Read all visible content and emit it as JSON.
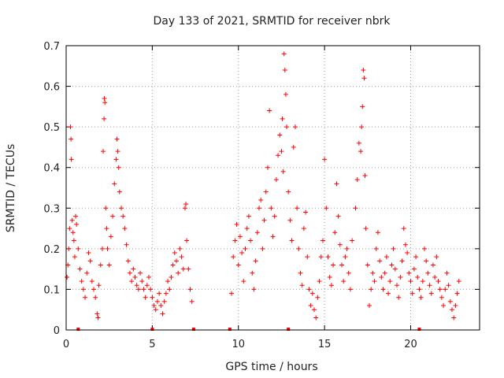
{
  "chart_data": {
    "type": "scatter",
    "title": "Day 133 of 2021, SRMTID for receiver nbrk",
    "xlabel": "GPS time / hours",
    "ylabel": "SRMTID / TECUs",
    "xlim": [
      0,
      24
    ],
    "ylim": [
      0,
      0.7
    ],
    "xticks": [
      0,
      5,
      10,
      15,
      20
    ],
    "xtick_labels": [
      "0",
      "5",
      "10",
      "15",
      "20"
    ],
    "yticks": [
      0,
      0.1,
      0.2,
      0.3,
      0.4,
      0.5,
      0.6,
      0.7
    ],
    "ytick_labels": [
      "0",
      "0.1",
      "0.2",
      "0.3",
      "0.4",
      "0.5",
      "0.6",
      "0.7"
    ],
    "grid": true,
    "marker": "+",
    "color": "#ff0000",
    "gap_markers_x": [
      0.7,
      5.0,
      7.4,
      9.5,
      12.9,
      20.5
    ],
    "series": [
      {
        "name": "nbrk",
        "points": [
          [
            0.05,
            0.13
          ],
          [
            0.1,
            0.16
          ],
          [
            0.15,
            0.2
          ],
          [
            0.2,
            0.25
          ],
          [
            0.25,
            0.5
          ],
          [
            0.28,
            0.47
          ],
          [
            0.3,
            0.42
          ],
          [
            0.35,
            0.27
          ],
          [
            0.4,
            0.24
          ],
          [
            0.45,
            0.22
          ],
          [
            0.5,
            0.18
          ],
          [
            0.55,
            0.28
          ],
          [
            0.6,
            0.26
          ],
          [
            0.7,
            0.2
          ],
          [
            0.8,
            0.15
          ],
          [
            0.9,
            0.12
          ],
          [
            1.0,
            0.1
          ],
          [
            1.1,
            0.08
          ],
          [
            1.2,
            0.14
          ],
          [
            1.3,
            0.19
          ],
          [
            1.4,
            0.17
          ],
          [
            1.5,
            0.12
          ],
          [
            1.6,
            0.1
          ],
          [
            1.7,
            0.08
          ],
          [
            1.8,
            0.04
          ],
          [
            1.85,
            0.03
          ],
          [
            1.9,
            0.11
          ],
          [
            2.0,
            0.16
          ],
          [
            2.1,
            0.2
          ],
          [
            2.15,
            0.44
          ],
          [
            2.2,
            0.52
          ],
          [
            2.22,
            0.57
          ],
          [
            2.25,
            0.56
          ],
          [
            2.3,
            0.3
          ],
          [
            2.35,
            0.25
          ],
          [
            2.4,
            0.2
          ],
          [
            2.5,
            0.16
          ],
          [
            2.6,
            0.23
          ],
          [
            2.7,
            0.28
          ],
          [
            2.8,
            0.36
          ],
          [
            2.9,
            0.42
          ],
          [
            2.95,
            0.47
          ],
          [
            3.0,
            0.44
          ],
          [
            3.05,
            0.4
          ],
          [
            3.1,
            0.34
          ],
          [
            3.2,
            0.3
          ],
          [
            3.3,
            0.28
          ],
          [
            3.4,
            0.25
          ],
          [
            3.5,
            0.21
          ],
          [
            3.6,
            0.17
          ],
          [
            3.7,
            0.14
          ],
          [
            3.8,
            0.12
          ],
          [
            3.9,
            0.15
          ],
          [
            4.0,
            0.13
          ],
          [
            4.1,
            0.11
          ],
          [
            4.2,
            0.1
          ],
          [
            4.3,
            0.14
          ],
          [
            4.4,
            0.12
          ],
          [
            4.5,
            0.1
          ],
          [
            4.6,
            0.08
          ],
          [
            4.7,
            0.11
          ],
          [
            4.8,
            0.13
          ],
          [
            4.9,
            0.1
          ],
          [
            5.0,
            0.08
          ],
          [
            5.1,
            0.06
          ],
          [
            5.2,
            0.05
          ],
          [
            5.3,
            0.07
          ],
          [
            5.4,
            0.09
          ],
          [
            5.5,
            0.06
          ],
          [
            5.6,
            0.04
          ],
          [
            5.7,
            0.07
          ],
          [
            5.8,
            0.09
          ],
          [
            5.9,
            0.12
          ],
          [
            6.0,
            0.1
          ],
          [
            6.1,
            0.13
          ],
          [
            6.2,
            0.16
          ],
          [
            6.3,
            0.19
          ],
          [
            6.4,
            0.17
          ],
          [
            6.5,
            0.14
          ],
          [
            6.6,
            0.2
          ],
          [
            6.7,
            0.18
          ],
          [
            6.8,
            0.15
          ],
          [
            6.9,
            0.3
          ],
          [
            6.95,
            0.31
          ],
          [
            7.0,
            0.22
          ],
          [
            7.1,
            0.15
          ],
          [
            7.2,
            0.1
          ],
          [
            7.3,
            0.07
          ],
          [
            9.6,
            0.09
          ],
          [
            9.7,
            0.18
          ],
          [
            9.8,
            0.22
          ],
          [
            9.9,
            0.26
          ],
          [
            10.0,
            0.16
          ],
          [
            10.1,
            0.23
          ],
          [
            10.2,
            0.19
          ],
          [
            10.3,
            0.12
          ],
          [
            10.4,
            0.2
          ],
          [
            10.5,
            0.25
          ],
          [
            10.6,
            0.28
          ],
          [
            10.7,
            0.22
          ],
          [
            10.8,
            0.14
          ],
          [
            10.9,
            0.1
          ],
          [
            11.0,
            0.17
          ],
          [
            11.1,
            0.24
          ],
          [
            11.2,
            0.3
          ],
          [
            11.3,
            0.32
          ],
          [
            11.4,
            0.2
          ],
          [
            11.5,
            0.27
          ],
          [
            11.6,
            0.34
          ],
          [
            11.7,
            0.4
          ],
          [
            11.8,
            0.54
          ],
          [
            11.9,
            0.3
          ],
          [
            12.0,
            0.23
          ],
          [
            12.1,
            0.28
          ],
          [
            12.2,
            0.37
          ],
          [
            12.3,
            0.43
          ],
          [
            12.4,
            0.48
          ],
          [
            12.5,
            0.44
          ],
          [
            12.55,
            0.52
          ],
          [
            12.6,
            0.39
          ],
          [
            12.65,
            0.68
          ],
          [
            12.7,
            0.64
          ],
          [
            12.75,
            0.58
          ],
          [
            12.8,
            0.5
          ],
          [
            12.9,
            0.34
          ],
          [
            13.0,
            0.27
          ],
          [
            13.1,
            0.22
          ],
          [
            13.2,
            0.45
          ],
          [
            13.3,
            0.5
          ],
          [
            13.4,
            0.3
          ],
          [
            13.5,
            0.2
          ],
          [
            13.6,
            0.14
          ],
          [
            13.7,
            0.11
          ],
          [
            13.8,
            0.25
          ],
          [
            13.9,
            0.29
          ],
          [
            14.0,
            0.18
          ],
          [
            14.1,
            0.1
          ],
          [
            14.2,
            0.06
          ],
          [
            14.3,
            0.09
          ],
          [
            14.4,
            0.05
          ],
          [
            14.5,
            0.03
          ],
          [
            14.6,
            0.08
          ],
          [
            14.7,
            0.12
          ],
          [
            14.8,
            0.18
          ],
          [
            14.9,
            0.22
          ],
          [
            15.0,
            0.42
          ],
          [
            15.1,
            0.3
          ],
          [
            15.2,
            0.18
          ],
          [
            15.3,
            0.13
          ],
          [
            15.4,
            0.11
          ],
          [
            15.5,
            0.16
          ],
          [
            15.6,
            0.24
          ],
          [
            15.7,
            0.36
          ],
          [
            15.8,
            0.28
          ],
          [
            15.9,
            0.21
          ],
          [
            16.0,
            0.16
          ],
          [
            16.1,
            0.12
          ],
          [
            16.2,
            0.18
          ],
          [
            16.3,
            0.2
          ],
          [
            16.4,
            0.14
          ],
          [
            16.5,
            0.1
          ],
          [
            16.6,
            0.22
          ],
          [
            16.8,
            0.3
          ],
          [
            16.9,
            0.37
          ],
          [
            17.0,
            0.46
          ],
          [
            17.1,
            0.44
          ],
          [
            17.15,
            0.5
          ],
          [
            17.2,
            0.55
          ],
          [
            17.25,
            0.64
          ],
          [
            17.3,
            0.62
          ],
          [
            17.35,
            0.38
          ],
          [
            17.4,
            0.25
          ],
          [
            17.5,
            0.16
          ],
          [
            17.6,
            0.06
          ],
          [
            17.7,
            0.1
          ],
          [
            17.8,
            0.14
          ],
          [
            17.9,
            0.12
          ],
          [
            18.0,
            0.2
          ],
          [
            18.1,
            0.24
          ],
          [
            18.2,
            0.17
          ],
          [
            18.3,
            0.13
          ],
          [
            18.4,
            0.1
          ],
          [
            18.5,
            0.14
          ],
          [
            18.6,
            0.18
          ],
          [
            18.7,
            0.09
          ],
          [
            18.8,
            0.12
          ],
          [
            18.9,
            0.16
          ],
          [
            19.0,
            0.2
          ],
          [
            19.1,
            0.15
          ],
          [
            19.2,
            0.11
          ],
          [
            19.3,
            0.08
          ],
          [
            19.4,
            0.13
          ],
          [
            19.5,
            0.17
          ],
          [
            19.6,
            0.25
          ],
          [
            19.7,
            0.21
          ],
          [
            19.8,
            0.19
          ],
          [
            19.9,
            0.14
          ],
          [
            20.0,
            0.12
          ],
          [
            20.1,
            0.09
          ],
          [
            20.2,
            0.15
          ],
          [
            20.3,
            0.18
          ],
          [
            20.4,
            0.13
          ],
          [
            20.5,
            0.1
          ],
          [
            20.6,
            0.08
          ],
          [
            20.7,
            0.12
          ],
          [
            20.8,
            0.2
          ],
          [
            20.9,
            0.17
          ],
          [
            21.0,
            0.14
          ],
          [
            21.1,
            0.11
          ],
          [
            21.2,
            0.09
          ],
          [
            21.3,
            0.16
          ],
          [
            21.4,
            0.13
          ],
          [
            21.5,
            0.18
          ],
          [
            21.6,
            0.12
          ],
          [
            21.7,
            0.1
          ],
          [
            21.8,
            0.08
          ],
          [
            21.9,
            0.06
          ],
          [
            22.0,
            0.1
          ],
          [
            22.1,
            0.14
          ],
          [
            22.2,
            0.11
          ],
          [
            22.3,
            0.07
          ],
          [
            22.4,
            0.05
          ],
          [
            22.5,
            0.03
          ],
          [
            22.6,
            0.06
          ],
          [
            22.7,
            0.09
          ],
          [
            22.8,
            0.12
          ]
        ]
      }
    ]
  }
}
